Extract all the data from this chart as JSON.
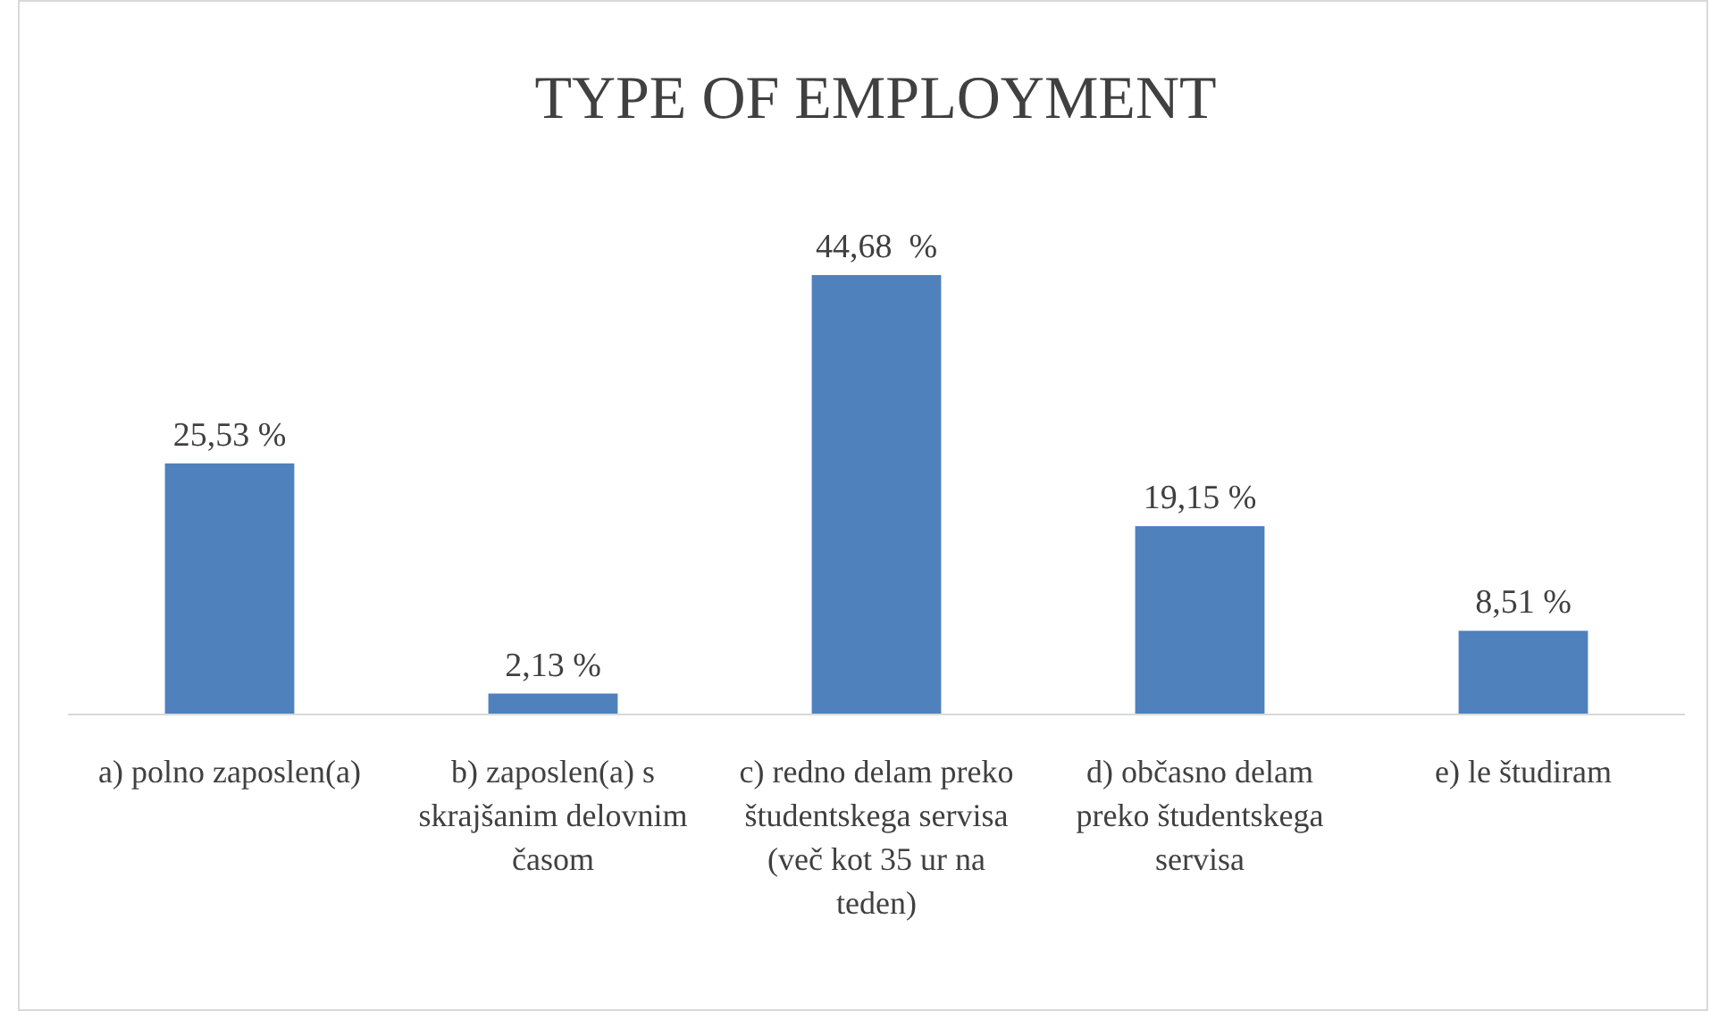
{
  "chart_data": {
    "type": "bar",
    "title": "TYPE OF EMPLOYMENT",
    "categories": [
      "a) polno zaposlen(a)",
      "b) zaposlen(a) s skrajšanim delovnim časom",
      "c) redno delam preko študentskega servisa (več kot 35 ur na teden)",
      "d) občasno delam preko študentskega servisa",
      "e) le študiram"
    ],
    "values": [
      25.53,
      2.13,
      44.68,
      19.15,
      8.51
    ],
    "value_labels": [
      "25,53 %",
      "2,13 %",
      "44,68  %",
      "19,15 %",
      "8,51 %"
    ],
    "color": "#4f81bd"
  }
}
